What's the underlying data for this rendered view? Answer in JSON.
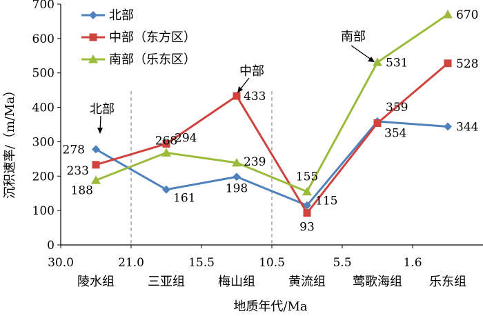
{
  "chart_data": {
    "type": "line",
    "xlabel": "地质年代/Ma",
    "ylabel": "沉积速率/（m/Ma）",
    "ylim": [
      0,
      700
    ],
    "yticks": [
      0,
      100,
      200,
      300,
      400,
      500,
      600,
      700
    ],
    "age_ticks": [
      "30.0",
      "21.0",
      "15.5",
      "10.5",
      "5.5",
      "1.6"
    ],
    "categories": [
      "陵水组",
      "三亚组",
      "梅山组",
      "黄流组",
      "莺歌海组",
      "乐东组"
    ],
    "legend_position": "top-left",
    "series": [
      {
        "name": "北部",
        "color": "#4f81bd",
        "marker": "diamond",
        "values": [
          278,
          161,
          198,
          115,
          359,
          344
        ]
      },
      {
        "name": "中部（东方区）",
        "color": "#d0423e",
        "marker": "square",
        "values": [
          233,
          294,
          433,
          93,
          354,
          528
        ]
      },
      {
        "name": "南部（乐东区）",
        "color": "#9bbb3b",
        "marker": "triangle",
        "values": [
          188,
          268,
          239,
          155,
          531,
          670
        ]
      }
    ],
    "annotations": [
      "北部",
      "中部",
      "南部"
    ]
  }
}
